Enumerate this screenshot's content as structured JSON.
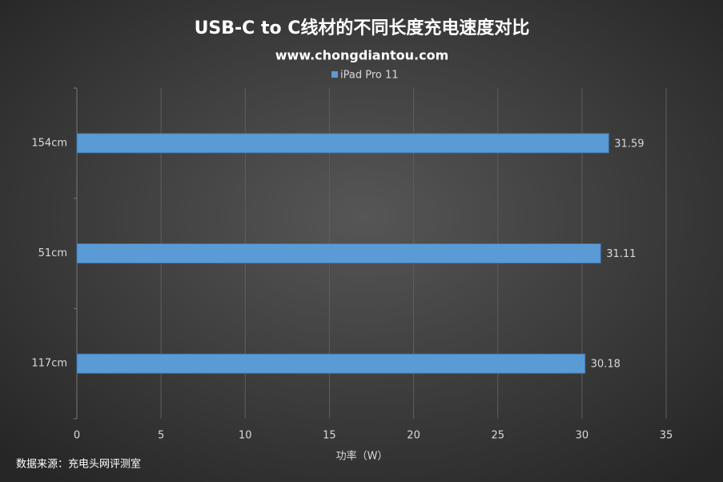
{
  "chart_data": {
    "type": "bar",
    "orientation": "horizontal",
    "title": "USB-C to C线材的不同长度充电速度对比",
    "subtitle": "www.chongdiantou.com",
    "categories": [
      "154cm",
      "51cm",
      "117cm"
    ],
    "series": [
      {
        "name": "iPad Pro 11",
        "color": "#5b9bd5",
        "values": [
          31.59,
          31.11,
          30.18
        ]
      }
    ],
    "xlim": [
      0,
      35
    ],
    "xticks": [
      0,
      5,
      10,
      15,
      20,
      25,
      30,
      35
    ],
    "xlabel": "功率（W）",
    "grid": true,
    "source": "数据来源：充电头网评测室"
  }
}
